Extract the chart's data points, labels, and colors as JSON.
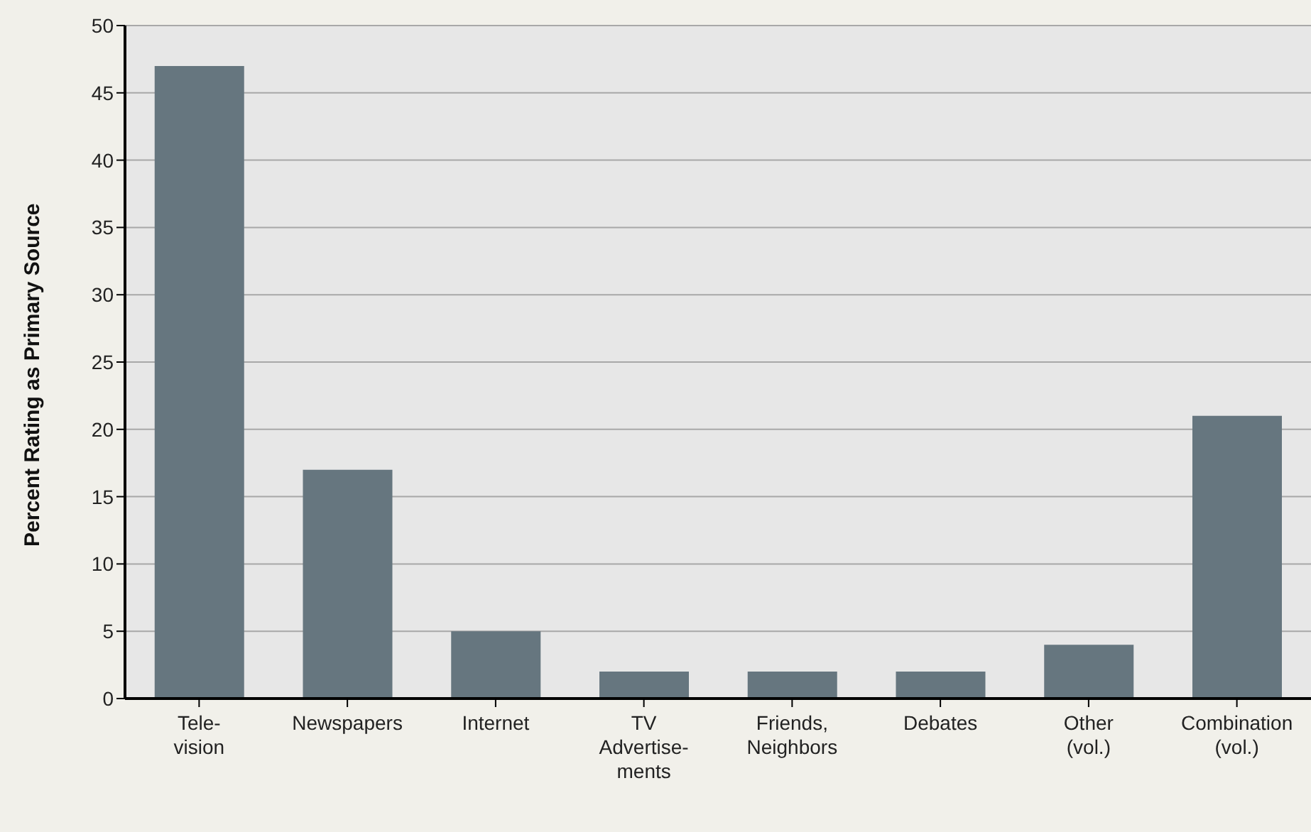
{
  "chart_data": {
    "type": "bar",
    "ylabel": "Percent Rating as Primary Source",
    "categories": [
      "Tele-\nvision",
      "Newspapers",
      "Internet",
      "TV\nAdvertise-\nments",
      "Friends,\nNeighbors",
      "Debates",
      "Other\n(vol.)",
      "Combination\n(vol.)"
    ],
    "values": [
      47,
      17,
      5,
      2,
      2,
      2,
      4,
      21
    ],
    "color": "#66767f",
    "ylim": [
      0,
      50
    ],
    "yticks": [
      0,
      5,
      10,
      15,
      20,
      25,
      30,
      35,
      40,
      45,
      50
    ],
    "grid": "y",
    "legend": false
  }
}
